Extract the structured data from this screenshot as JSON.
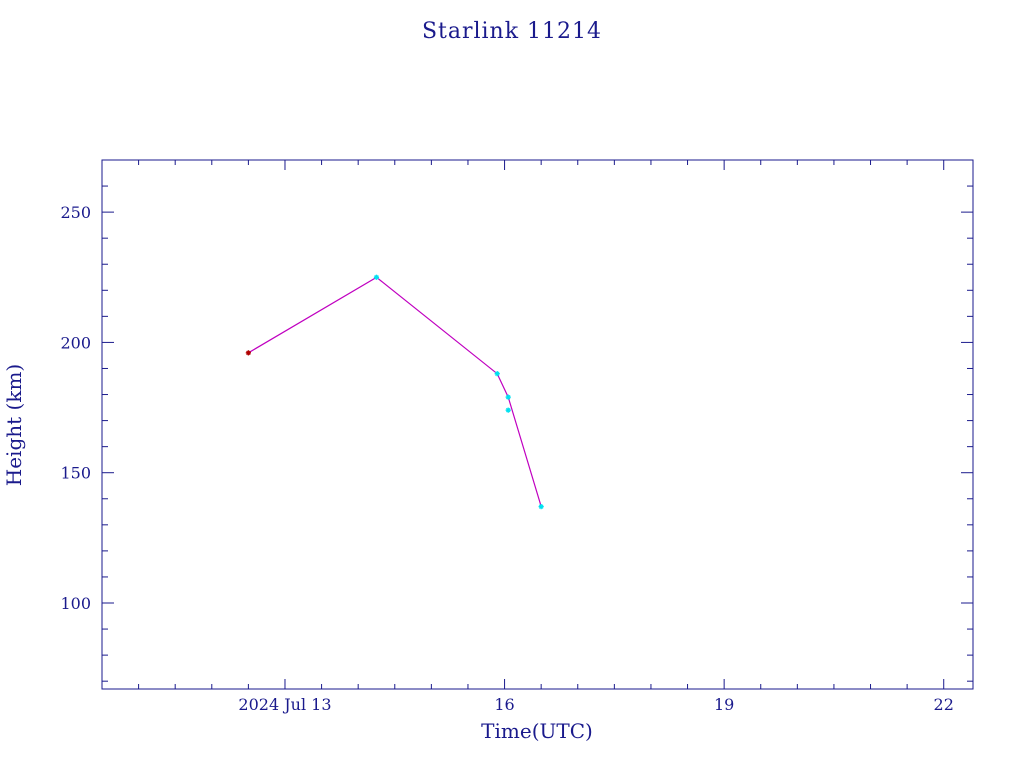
{
  "chart_data": {
    "type": "line",
    "title": "Starlink 11214",
    "xlabel": "Time(UTC)",
    "ylabel": "Height (km)",
    "x_tick_labels": [
      "2024 Jul 13",
      "16",
      "19",
      "22"
    ],
    "x_ticks_days": [
      13,
      16,
      19,
      22
    ],
    "y_tick_labels": [
      "100",
      "150",
      "200",
      "250"
    ],
    "y_ticks": [
      100,
      150,
      200,
      250
    ],
    "xlim_days": [
      10.5,
      22.4
    ],
    "ylim": [
      67,
      270
    ],
    "grid": false,
    "series": [
      {
        "points": [
          {
            "t": 12.5,
            "h": 196
          },
          {
            "t": 14.25,
            "h": 225
          },
          {
            "t": 15.9,
            "h": 188
          },
          {
            "t": 16.05,
            "h": 179
          },
          {
            "t": 16.05,
            "h": 174
          },
          {
            "t": 16.5,
            "h": 137
          }
        ],
        "marker_colors": [
          "#b00000",
          "#00e0f0",
          "#00e0f0",
          "#00e0f0",
          "#00e0f0",
          "#00e0f0"
        ],
        "line_points": [
          {
            "t": 12.5,
            "h": 196
          },
          {
            "t": 14.25,
            "h": 225
          },
          {
            "t": 15.9,
            "h": 188
          },
          {
            "t": 16.05,
            "h": 179
          },
          {
            "t": 16.5,
            "h": 137
          }
        ]
      }
    ],
    "colors": {
      "axis": "#1a1a8c",
      "line": "#c000c0"
    }
  }
}
